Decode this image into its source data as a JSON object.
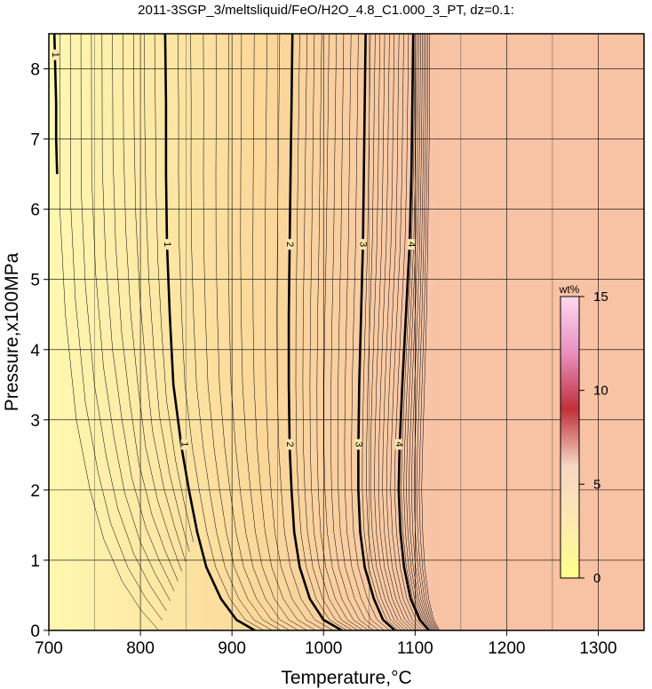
{
  "chart_data": {
    "type": "contour",
    "title": "2011-3SGP_3/meltsliquid/FeO/H2O_4.8_C1.000_3_PT, dz=0.1:",
    "xlabel": "Temperature,°C",
    "ylabel": "Pressure,x100MPa",
    "xlim": [
      700,
      1350
    ],
    "ylim": [
      0,
      8.5
    ],
    "x_ticks": [
      700,
      800,
      900,
      1000,
      1100,
      1200,
      1300
    ],
    "y_ticks": [
      0,
      1,
      2,
      3,
      4,
      5,
      6,
      7,
      8
    ],
    "x_ticks_labels": [
      "700",
      "800",
      "900",
      "1000",
      "1100",
      "1200",
      "1300"
    ],
    "y_ticks_labels": [
      "0",
      "1",
      "2",
      "3",
      "4",
      "5",
      "6",
      "7",
      "8"
    ],
    "grid": true,
    "contour_interval": 0.1,
    "labeled_contours": [
      {
        "level": "1",
        "points": [
          [
            706,
            8.5
          ],
          [
            707,
            8.0
          ],
          [
            708,
            7.5
          ],
          [
            708,
            7.0
          ],
          [
            709,
            6.5
          ]
        ],
        "label_positions": [
          [
            707,
            8.2
          ]
        ]
      },
      {
        "level": "1",
        "points": [
          [
            827,
            8.5
          ],
          [
            828,
            7.5
          ],
          [
            828,
            6.5
          ],
          [
            829,
            5.5
          ],
          [
            832,
            4.5
          ],
          [
            836,
            3.5
          ],
          [
            845,
            2.6
          ],
          [
            853,
            2.0
          ],
          [
            862,
            1.4
          ],
          [
            872,
            0.9
          ],
          [
            888,
            0.45
          ],
          [
            905,
            0.15
          ],
          [
            925,
            0
          ]
        ],
        "label_positions": [
          [
            829,
            5.5
          ],
          [
            848,
            2.65
          ]
        ]
      },
      {
        "level": "2",
        "points": [
          [
            966,
            8.5
          ],
          [
            965,
            7.5
          ],
          [
            964,
            6.5
          ],
          [
            963,
            5.5
          ],
          [
            962,
            4.5
          ],
          [
            962,
            3.5
          ],
          [
            963,
            2.6
          ],
          [
            965,
            2.0
          ],
          [
            968,
            1.4
          ],
          [
            974,
            0.9
          ],
          [
            985,
            0.45
          ],
          [
            1000,
            0.15
          ],
          [
            1020,
            0
          ]
        ],
        "label_positions": [
          [
            963,
            5.5
          ],
          [
            963,
            2.65
          ]
        ]
      },
      {
        "level": "3",
        "points": [
          [
            1046,
            8.5
          ],
          [
            1045,
            7.5
          ],
          [
            1044,
            6.5
          ],
          [
            1043,
            5.5
          ],
          [
            1041,
            4.5
          ],
          [
            1039,
            3.5
          ],
          [
            1038,
            2.6
          ],
          [
            1038,
            2.0
          ],
          [
            1040,
            1.4
          ],
          [
            1045,
            0.9
          ],
          [
            1055,
            0.45
          ],
          [
            1065,
            0.15
          ],
          [
            1078,
            0
          ]
        ],
        "label_positions": [
          [
            1043,
            5.5
          ],
          [
            1038,
            2.65
          ]
        ]
      },
      {
        "level": "4",
        "points": [
          [
            1098,
            8.5
          ],
          [
            1097,
            7.5
          ],
          [
            1096,
            6.5
          ],
          [
            1094,
            5.5
          ],
          [
            1090,
            4.5
          ],
          [
            1086,
            3.5
          ],
          [
            1083,
            2.6
          ],
          [
            1082,
            2.0
          ],
          [
            1084,
            1.4
          ],
          [
            1088,
            0.9
          ],
          [
            1095,
            0.45
          ],
          [
            1105,
            0.15
          ],
          [
            1115,
            0
          ]
        ],
        "label_positions": [
          [
            1096,
            5.5
          ],
          [
            1082,
            2.65
          ]
        ]
      }
    ],
    "region_colors": {
      "low": "#fff8b0",
      "mid": "#fbd89a",
      "high": "#f8c4a8",
      "saturated": "#f8c2a4"
    },
    "colorbar": {
      "title": "wt%",
      "range": [
        0,
        15
      ],
      "ticks": [
        "0",
        "5",
        "10",
        "15"
      ],
      "colors": [
        "#ffff8a",
        "#fde9b0",
        "#f6d6c4",
        "#c0303a",
        "#e890c0",
        "#ffd8f0"
      ]
    }
  }
}
